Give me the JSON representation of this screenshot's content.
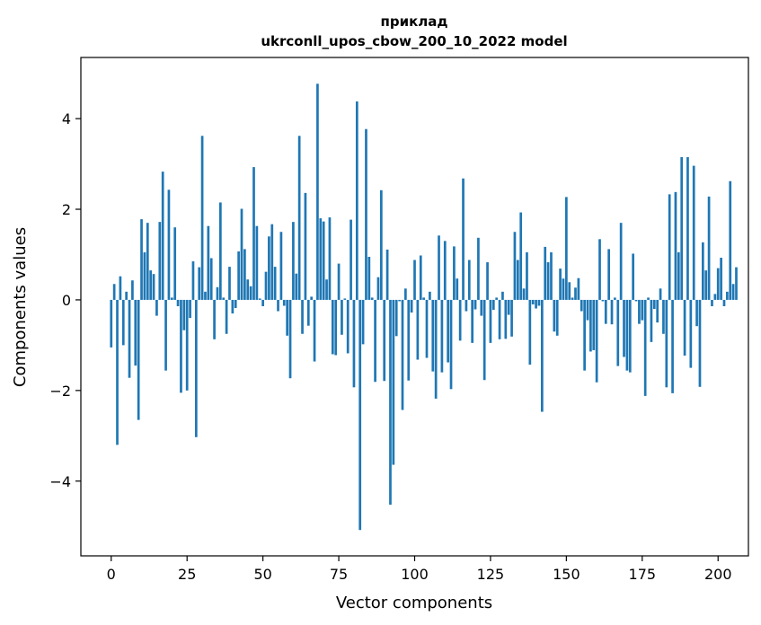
{
  "chart_data": {
    "type": "bar",
    "title": "приклад",
    "subtitle": "ukrconll_upos_cbow_200_10_2022 model",
    "xlabel": "Vector components",
    "ylabel": "Components values",
    "xlim": [
      -10,
      210
    ],
    "ylim": [
      -5.65,
      5.35
    ],
    "xticks": [
      0,
      25,
      50,
      75,
      100,
      125,
      150,
      175,
      200
    ],
    "xtick_labels": [
      "0",
      "25",
      "50",
      "75",
      "100",
      "125",
      "150",
      "175",
      "200"
    ],
    "yticks": [
      -4,
      -2,
      0,
      2,
      4
    ],
    "ytick_labels": [
      "−4",
      "−2",
      "0",
      "2",
      "4"
    ],
    "bar_color": "#1f77b4",
    "values": [
      -1.05,
      0.35,
      -3.2,
      0.52,
      -1.0,
      0.18,
      -1.72,
      0.43,
      -1.45,
      -2.65,
      1.78,
      1.05,
      1.7,
      0.65,
      0.57,
      -0.35,
      1.72,
      2.83,
      -1.56,
      2.43,
      0.05,
      1.6,
      -0.14,
      -2.05,
      -0.67,
      -2.0,
      -0.4,
      0.85,
      -3.03,
      0.72,
      3.62,
      0.18,
      1.63,
      0.92,
      -0.87,
      0.28,
      2.15,
      0.05,
      -0.75,
      0.73,
      -0.3,
      -0.18,
      1.07,
      2.01,
      1.12,
      0.45,
      0.3,
      2.93,
      1.63,
      0.03,
      -0.14,
      0.62,
      1.4,
      1.67,
      0.73,
      -0.25,
      1.5,
      -0.13,
      -0.79,
      -1.73,
      1.72,
      0.58,
      3.62,
      -0.75,
      2.36,
      -0.57,
      0.07,
      -1.36,
      4.77,
      1.8,
      1.73,
      0.45,
      1.82,
      -1.2,
      -1.22,
      0.8,
      -0.77,
      0.03,
      -1.18,
      1.77,
      -1.93,
      4.38,
      -5.08,
      -0.98,
      3.77,
      0.95,
      0.05,
      -1.81,
      0.5,
      2.42,
      -1.79,
      1.11,
      -4.52,
      -3.64,
      -0.8,
      -0.03,
      -2.43,
      0.25,
      -1.78,
      -0.28,
      0.88,
      -1.32,
      0.98,
      0.05,
      -1.28,
      0.18,
      -1.58,
      -2.18,
      1.42,
      -1.6,
      1.3,
      -1.38,
      -1.97,
      1.18,
      0.47,
      -0.9,
      2.68,
      -0.25,
      0.88,
      -0.95,
      -0.21,
      1.37,
      -0.35,
      -1.77,
      0.83,
      -0.95,
      -0.22,
      0.05,
      -0.87,
      0.18,
      -0.86,
      -0.33,
      -0.81,
      1.5,
      0.88,
      1.93,
      0.25,
      1.05,
      -1.43,
      -0.1,
      -0.19,
      -0.13,
      -2.47,
      1.17,
      0.83,
      1.05,
      -0.7,
      -0.79,
      0.69,
      0.47,
      2.27,
      0.39,
      0.05,
      0.27,
      0.48,
      -0.25,
      -1.56,
      -0.45,
      -1.14,
      -1.11,
      -1.82,
      1.34,
      -0.03,
      -0.53,
      1.12,
      -0.54,
      0.05,
      -1.46,
      1.7,
      -1.26,
      -1.56,
      -1.6,
      1.02,
      -0.03,
      -0.53,
      -0.45,
      -2.12,
      0.05,
      -0.93,
      -0.2,
      -0.5,
      0.25,
      -0.75,
      -1.93,
      2.33,
      -2.06,
      2.38,
      1.05,
      3.15,
      -1.23,
      3.15,
      -1.5,
      2.96,
      -0.58,
      -1.92,
      1.27,
      0.65,
      2.28,
      -0.14,
      0.13,
      0.7,
      0.93,
      -0.14,
      0.18,
      2.62,
      0.35,
      0.72
    ]
  }
}
